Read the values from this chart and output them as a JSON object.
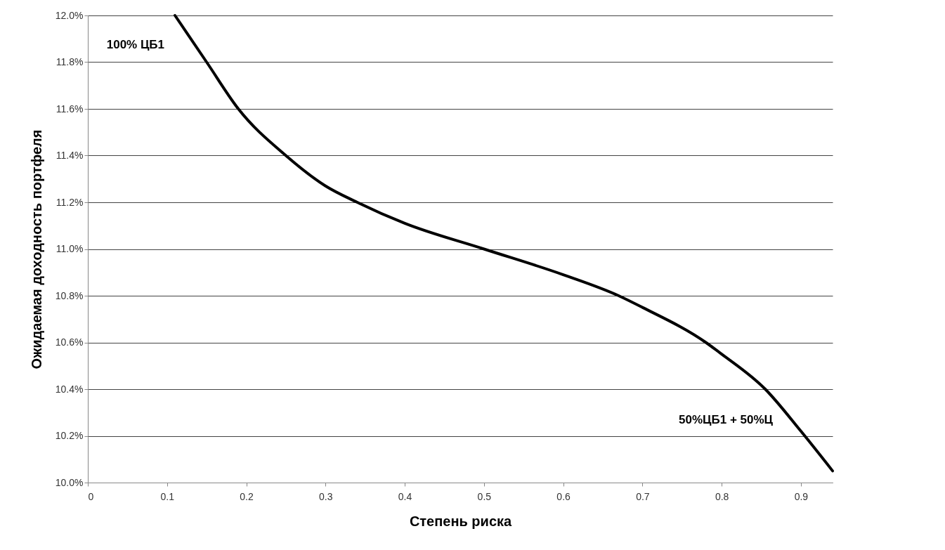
{
  "chart_data": {
    "type": "line",
    "xlabel": "Степень риска",
    "ylabel": "Ожидаемая доходность портфеля",
    "x": [
      0.11,
      0.15,
      0.19,
      0.25,
      0.3,
      0.34,
      0.4,
      0.5,
      0.6,
      0.67,
      0.7,
      0.78,
      0.8,
      0.855,
      0.9,
      0.94
    ],
    "series": [
      {
        "color": "#000000",
        "values": [
          12.0,
          11.8,
          11.6,
          11.4,
          11.27,
          11.2,
          11.11,
          11.0,
          10.89,
          10.8,
          10.75,
          10.6,
          10.55,
          10.4,
          10.22,
          10.05
        ]
      }
    ],
    "xlim": [
      0,
      0.94
    ],
    "xticks": [
      0,
      0.1,
      0.2,
      0.3,
      0.4,
      0.5,
      0.6,
      0.7,
      0.8,
      0.9
    ],
    "ylim": [
      10,
      12
    ],
    "yticks": [
      {
        "value": 10,
        "label": "10.0%"
      },
      {
        "value": 10.2,
        "label": "10.2%"
      },
      {
        "value": 10.4,
        "label": "10.4%"
      },
      {
        "value": 10.6,
        "label": "10.6%"
      },
      {
        "value": 10.8,
        "label": "10.8%"
      },
      {
        "value": 11,
        "label": "11.0%"
      },
      {
        "value": 11.2,
        "label": "11.2%"
      },
      {
        "value": 11.4,
        "label": "11.4%"
      },
      {
        "value": 11.6,
        "label": "11.6%"
      },
      {
        "value": 11.8,
        "label": "11.8%"
      },
      {
        "value": 12,
        "label": "12.0%"
      }
    ],
    "annotations": [
      "100% ЦБ1",
      "50%ЦБ1 + 50%Ц"
    ],
    "grid": "y",
    "marker": "none",
    "line_style": "solid"
  }
}
